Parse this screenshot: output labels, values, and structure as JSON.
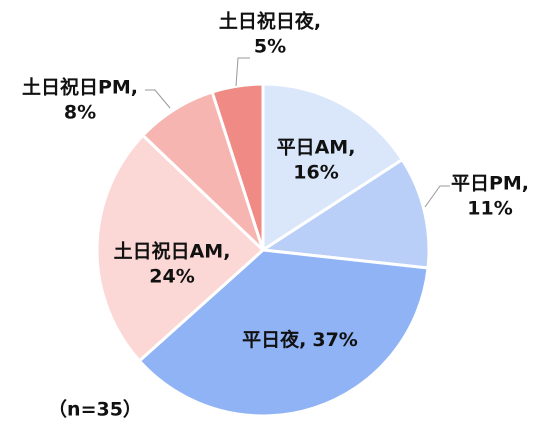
{
  "chart_data": {
    "type": "pie",
    "categories": [
      "平日AM,",
      "平日PM,",
      "平日夜,",
      "土日祝日AM,",
      "土日祝日PM,",
      "土日祝日夜,"
    ],
    "values": [
      16,
      11,
      37,
      24,
      8,
      5
    ],
    "value_labels": [
      "16%",
      "11%",
      "37%",
      "24%",
      "8%",
      "5%"
    ],
    "colors": [
      "#dae7fb",
      "#b9cff8",
      "#8fb3f5",
      "#fbd8d5",
      "#f6b5b1",
      "#ef8a85"
    ],
    "note": "（n=35）"
  }
}
